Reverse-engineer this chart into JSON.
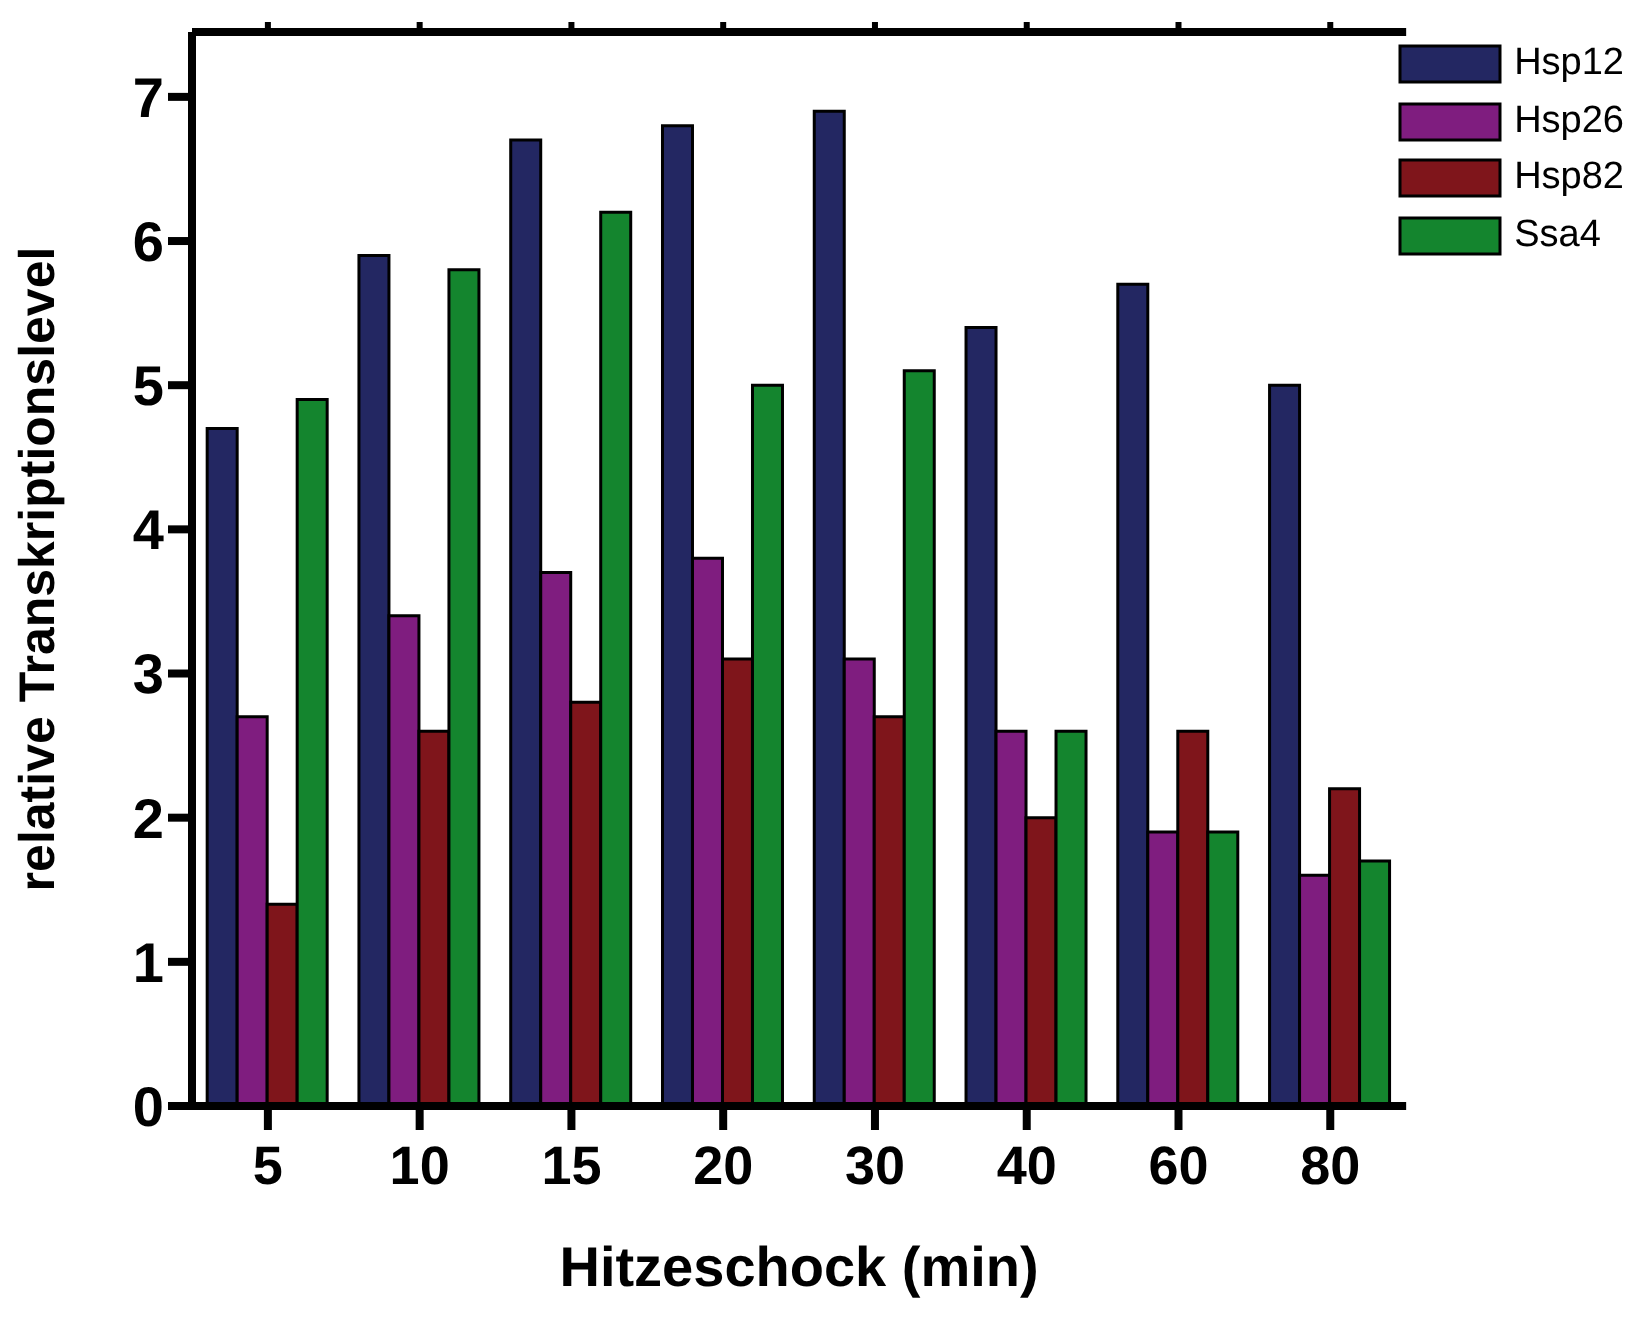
{
  "chart_data": {
    "type": "bar",
    "xlabel": "Hitzeschock (min)",
    "ylabel": "relative Transkriptionslevel",
    "categories": [
      "5",
      "10",
      "15",
      "20",
      "30",
      "40",
      "60",
      "80"
    ],
    "series": [
      {
        "name": "Hsp12",
        "color": "#232762",
        "values": [
          4.7,
          5.9,
          6.7,
          6.8,
          6.9,
          5.4,
          5.7,
          5.0
        ]
      },
      {
        "name": "Hsp26",
        "color": "#7f1d7f",
        "values": [
          2.7,
          3.4,
          3.7,
          3.8,
          3.1,
          2.6,
          1.9,
          1.6
        ]
      },
      {
        "name": "Hsp82",
        "color": "#7f151b",
        "values": [
          1.4,
          2.6,
          2.8,
          3.1,
          2.7,
          2.0,
          2.6,
          2.2
        ]
      },
      {
        "name": "Ssa4",
        "color": "#14852e",
        "values": [
          4.9,
          5.8,
          6.2,
          5.0,
          5.1,
          2.6,
          1.9,
          1.7
        ]
      }
    ],
    "ylim": [
      0,
      7.45
    ],
    "yticks": [
      0,
      1,
      2,
      3,
      4,
      5,
      6,
      7
    ],
    "grid": false,
    "legend": "top right"
  }
}
